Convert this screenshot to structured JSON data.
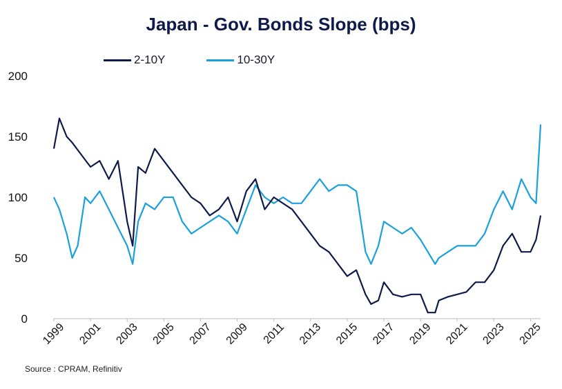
{
  "chart_data": {
    "type": "line",
    "title": "Japan - Gov. Bonds Slope (bps)",
    "xlabel": "",
    "ylabel": "",
    "ylim": [
      0,
      200
    ],
    "yticks": [
      "0",
      "50",
      "100",
      "150",
      "200"
    ],
    "xticks": [
      "1999",
      "2001",
      "2003",
      "2005",
      "2007",
      "2009",
      "2011",
      "2013",
      "2015",
      "2017",
      "2019",
      "2021",
      "2023",
      "2025"
    ],
    "xlim": [
      1999.0,
      2025.55
    ],
    "grid": false,
    "legend": "top-left",
    "colors": {
      "s2_10": "#0d1a4a",
      "s10_30": "#1aa0dc"
    },
    "series": [
      {
        "name": "2-10Y",
        "x": [
          1999.0,
          1999.3,
          1999.7,
          2000.0,
          2000.5,
          2001.0,
          2001.5,
          2002.0,
          2002.5,
          2003.0,
          2003.3,
          2003.6,
          2004.0,
          2004.5,
          2005.0,
          2005.5,
          2006.0,
          2006.5,
          2007.0,
          2007.5,
          2008.0,
          2008.5,
          2009.0,
          2009.5,
          2010.0,
          2010.5,
          2011.0,
          2011.5,
          2012.0,
          2012.5,
          2013.0,
          2013.5,
          2014.0,
          2014.5,
          2015.0,
          2015.5,
          2016.0,
          2016.3,
          2016.7,
          2017.0,
          2017.5,
          2018.0,
          2018.5,
          2019.0,
          2019.4,
          2019.8,
          2020.0,
          2020.5,
          2021.0,
          2021.5,
          2022.0,
          2022.5,
          2023.0,
          2023.5,
          2024.0,
          2024.5,
          2025.0,
          2025.3,
          2025.55
        ],
        "values": [
          140,
          165,
          150,
          145,
          135,
          125,
          130,
          115,
          130,
          80,
          60,
          125,
          120,
          140,
          130,
          120,
          110,
          100,
          95,
          85,
          90,
          100,
          80,
          105,
          115,
          90,
          100,
          95,
          90,
          80,
          70,
          60,
          55,
          45,
          35,
          40,
          20,
          12,
          15,
          30,
          20,
          18,
          20,
          20,
          5,
          5,
          15,
          18,
          20,
          22,
          30,
          30,
          40,
          60,
          70,
          55,
          55,
          65,
          85
        ]
      },
      {
        "name": "10-30Y",
        "x": [
          1999.0,
          1999.3,
          1999.7,
          2000.0,
          2000.3,
          2000.7,
          2001.0,
          2001.5,
          2002.0,
          2002.5,
          2003.0,
          2003.3,
          2003.6,
          2004.0,
          2004.5,
          2005.0,
          2005.5,
          2006.0,
          2006.5,
          2007.0,
          2007.5,
          2008.0,
          2008.5,
          2009.0,
          2009.5,
          2010.0,
          2010.5,
          2011.0,
          2011.5,
          2012.0,
          2012.5,
          2013.0,
          2013.5,
          2014.0,
          2014.5,
          2015.0,
          2015.5,
          2016.0,
          2016.3,
          2016.7,
          2017.0,
          2017.5,
          2018.0,
          2018.5,
          2019.0,
          2019.4,
          2019.8,
          2020.0,
          2020.5,
          2021.0,
          2021.5,
          2022.0,
          2022.5,
          2023.0,
          2023.5,
          2024.0,
          2024.5,
          2025.0,
          2025.3,
          2025.55
        ],
        "values": [
          100,
          90,
          70,
          50,
          60,
          100,
          95,
          105,
          90,
          75,
          60,
          45,
          80,
          95,
          90,
          100,
          100,
          80,
          70,
          75,
          80,
          85,
          80,
          70,
          90,
          110,
          100,
          95,
          100,
          95,
          95,
          105,
          115,
          105,
          110,
          110,
          105,
          55,
          45,
          60,
          80,
          75,
          70,
          75,
          65,
          55,
          45,
          50,
          55,
          60,
          60,
          60,
          70,
          90,
          105,
          90,
          115,
          100,
          95,
          160
        ]
      }
    ]
  }
}
